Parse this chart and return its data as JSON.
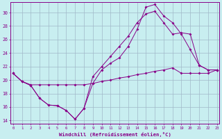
{
  "xlabel": "Windchill (Refroidissement éolien,°C)",
  "background_color": "#c8eef0",
  "grid_color": "#a0b8c8",
  "line_color": "#880088",
  "ylim": [
    13.5,
    31.5
  ],
  "xlim": [
    -0.3,
    23.3
  ],
  "yticks": [
    14,
    16,
    18,
    20,
    22,
    24,
    26,
    28,
    30
  ],
  "xticks": [
    0,
    1,
    2,
    3,
    4,
    5,
    6,
    7,
    8,
    9,
    10,
    11,
    12,
    13,
    14,
    15,
    16,
    17,
    18,
    19,
    20,
    21,
    22,
    23
  ],
  "series1_x": [
    0,
    1,
    2,
    3,
    4,
    5,
    6,
    7,
    8,
    9,
    10,
    11,
    12,
    13,
    14,
    15,
    16,
    17,
    18,
    19,
    20,
    21,
    22,
    23
  ],
  "series1_y": [
    21.0,
    19.8,
    19.3,
    19.3,
    19.3,
    19.3,
    19.3,
    19.3,
    19.3,
    19.5,
    19.8,
    20.0,
    20.3,
    20.5,
    20.8,
    21.0,
    21.3,
    21.5,
    21.8,
    21.0,
    21.0,
    21.0,
    21.0,
    21.5
  ],
  "series2_x": [
    0,
    1,
    2,
    3,
    4,
    5,
    6,
    7,
    8,
    9,
    10,
    11,
    12,
    13,
    14,
    15,
    16,
    17,
    18,
    19,
    20,
    21,
    22,
    23
  ],
  "series2_y": [
    21.0,
    19.8,
    19.2,
    17.3,
    16.3,
    16.2,
    15.5,
    14.2,
    15.8,
    19.5,
    21.5,
    22.5,
    23.3,
    25.0,
    27.5,
    30.8,
    31.2,
    29.5,
    28.5,
    26.8,
    24.5,
    22.2,
    21.5,
    21.5
  ],
  "series3_x": [
    0,
    1,
    2,
    3,
    4,
    5,
    6,
    7,
    8,
    9,
    10,
    11,
    12,
    13,
    14,
    15,
    16,
    17,
    18,
    19,
    20,
    21,
    22,
    23
  ],
  "series3_y": [
    21.0,
    19.8,
    19.2,
    17.3,
    16.3,
    16.2,
    15.5,
    14.2,
    15.8,
    20.5,
    22.0,
    23.5,
    25.0,
    26.5,
    28.5,
    29.8,
    30.2,
    28.5,
    26.8,
    27.0,
    26.8,
    22.2,
    21.5,
    21.5
  ]
}
